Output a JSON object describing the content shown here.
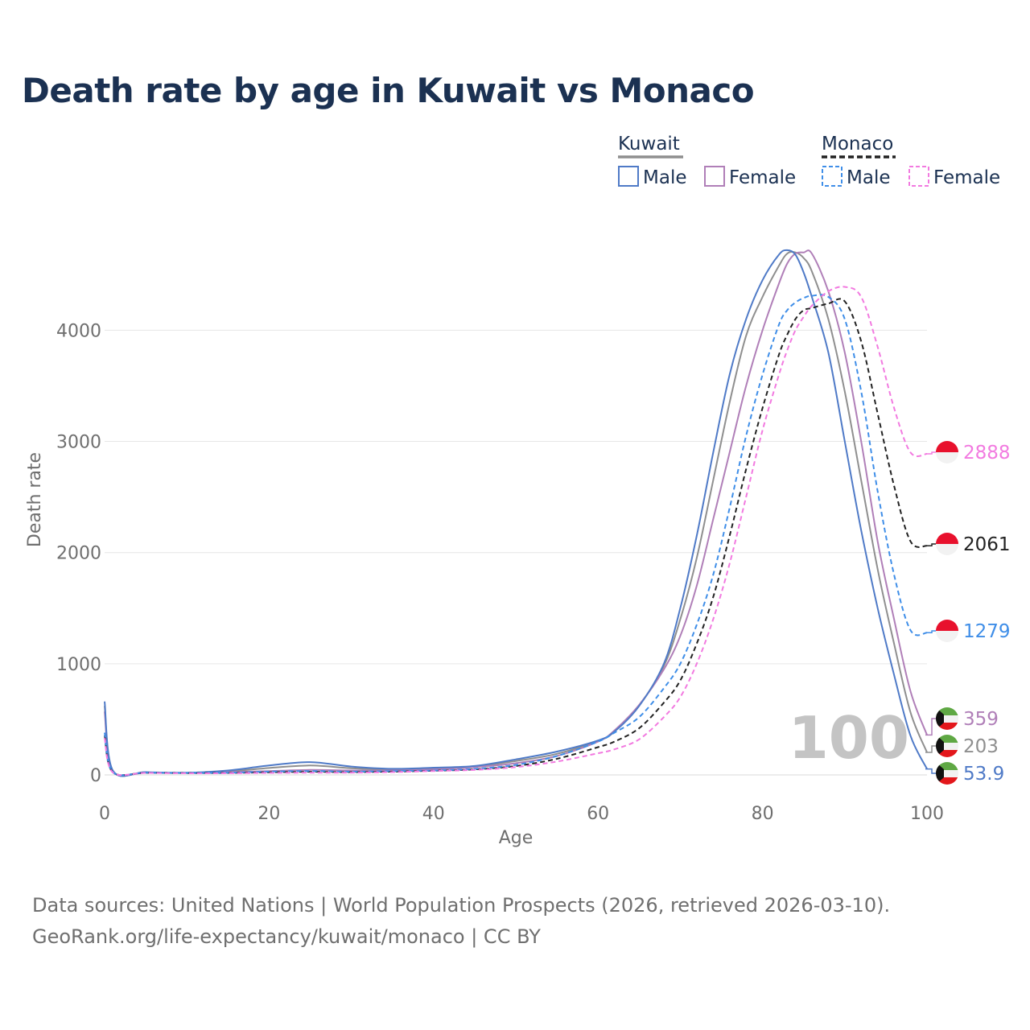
{
  "title": "Death rate by age in Kuwait vs Monaco",
  "legend": {
    "groups": [
      {
        "name": "Kuwait",
        "color": "#8f8f8f",
        "dashed": false,
        "items": [
          {
            "label": "Male",
            "color": "#4f7ac7"
          },
          {
            "label": "Female",
            "color": "#b07fb8"
          }
        ]
      },
      {
        "name": "Monaco",
        "color": "#222222",
        "dashed": true,
        "items": [
          {
            "label": "Male",
            "color": "#3f8ee8"
          },
          {
            "label": "Female",
            "color": "#f27ae0"
          }
        ]
      }
    ]
  },
  "watermark": "100",
  "footer": {
    "line1": "Data sources: United Nations | World Population Prospects (2026, retrieved 2026-03-10).",
    "line2": "GeoRank.org/life-expectancy/kuwait/monaco | CC BY"
  },
  "chart_data": {
    "type": "line",
    "title": "Death rate by age in Kuwait vs Monaco",
    "xlabel": "Age",
    "ylabel": "Death rate",
    "xlim": [
      0,
      100
    ],
    "ylim": [
      0,
      4700
    ],
    "xticks": [
      0,
      20,
      40,
      60,
      80,
      100
    ],
    "yticks": [
      0,
      1000,
      2000,
      3000,
      4000
    ],
    "grid": true,
    "x": [
      0,
      1,
      5,
      10,
      15,
      20,
      25,
      30,
      35,
      40,
      45,
      50,
      55,
      60,
      62,
      65,
      68,
      70,
      72,
      74,
      76,
      78,
      80,
      82,
      83,
      84,
      85,
      86,
      88,
      90,
      92,
      94,
      96,
      98,
      100
    ],
    "series": [
      {
        "name": "Kuwait Male",
        "color": "#4f7ac7",
        "dashed": false,
        "end_label": "53.9",
        "values": [
          660,
          40,
          25,
          20,
          40,
          85,
          115,
          75,
          55,
          65,
          80,
          140,
          210,
          310,
          390,
          620,
          1000,
          1500,
          2150,
          2900,
          3600,
          4100,
          4450,
          4680,
          4720,
          4680,
          4520,
          4300,
          3800,
          3000,
          2200,
          1500,
          900,
          350,
          54
        ]
      },
      {
        "name": "Kuwait Female",
        "color": "#b07fb8",
        "dashed": false,
        "end_label": "359",
        "values": [
          570,
          35,
          20,
          18,
          25,
          35,
          45,
          40,
          40,
          50,
          70,
          105,
          170,
          300,
          400,
          630,
          950,
          1250,
          1700,
          2300,
          2900,
          3500,
          4000,
          4420,
          4600,
          4690,
          4700,
          4690,
          4350,
          3800,
          3000,
          2100,
          1400,
          750,
          359
        ]
      },
      {
        "name": "Kuwait Total",
        "color": "#8f8f8f",
        "dashed": false,
        "end_label": "203",
        "values": [
          620,
          38,
          22,
          19,
          32,
          62,
          85,
          60,
          48,
          58,
          75,
          125,
          190,
          305,
          390,
          625,
          980,
          1400,
          1950,
          2650,
          3350,
          3950,
          4300,
          4580,
          4690,
          4700,
          4650,
          4530,
          4100,
          3450,
          2650,
          1850,
          1180,
          560,
          203
        ]
      },
      {
        "name": "Monaco Male",
        "color": "#3f8ee8",
        "dashed": true,
        "end_label": "1279",
        "values": [
          380,
          25,
          20,
          18,
          20,
          30,
          35,
          30,
          35,
          40,
          55,
          90,
          170,
          300,
          380,
          520,
          780,
          1000,
          1350,
          1800,
          2400,
          3050,
          3600,
          4050,
          4180,
          4250,
          4290,
          4310,
          4300,
          4100,
          3450,
          2550,
          1800,
          1300,
          1279
        ]
      },
      {
        "name": "Monaco Female",
        "color": "#f27ae0",
        "dashed": true,
        "end_label": "2888",
        "values": [
          330,
          22,
          18,
          15,
          15,
          18,
          20,
          20,
          25,
          35,
          45,
          70,
          120,
          195,
          230,
          320,
          520,
          700,
          1000,
          1400,
          1900,
          2500,
          3100,
          3600,
          3820,
          4000,
          4120,
          4220,
          4350,
          4390,
          4300,
          3850,
          3300,
          2900,
          2888
        ]
      },
      {
        "name": "Monaco Total",
        "color": "#222222",
        "dashed": true,
        "end_label": "2061",
        "values": [
          355,
          24,
          19,
          17,
          18,
          24,
          28,
          25,
          30,
          38,
          50,
          80,
          145,
          250,
          300,
          420,
          650,
          850,
          1180,
          1600,
          2150,
          2750,
          3300,
          3780,
          3960,
          4100,
          4180,
          4200,
          4240,
          4260,
          3900,
          3250,
          2600,
          2100,
          2061
        ]
      }
    ],
    "end_labels": [
      {
        "text": "2888",
        "color": "#f27ae0",
        "flag": "monaco"
      },
      {
        "text": "2061",
        "color": "#222222",
        "flag": "monaco"
      },
      {
        "text": "1279",
        "color": "#3f8ee8",
        "flag": "monaco"
      },
      {
        "text": "359",
        "color": "#b07fb8",
        "flag": "kuwait"
      },
      {
        "text": "203",
        "color": "#8f8f8f",
        "flag": "kuwait"
      },
      {
        "text": "53.9",
        "color": "#4f7ac7",
        "flag": "kuwait"
      }
    ]
  }
}
